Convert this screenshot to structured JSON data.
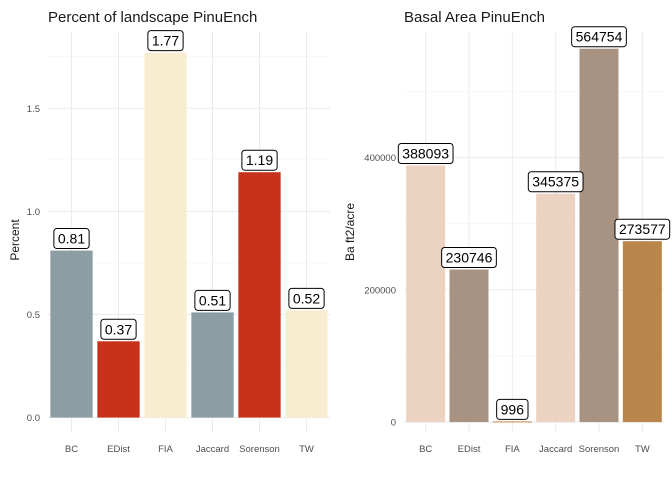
{
  "chart_data": [
    {
      "type": "bar",
      "title": "Percent of landscape  PinuEnch",
      "xlabel": "",
      "ylabel": "Percent",
      "categories": [
        "BC",
        "EDist",
        "FIA",
        "Jaccard",
        "Sorenson",
        "TW"
      ],
      "values": [
        0.81,
        0.37,
        1.77,
        0.51,
        1.19,
        0.52
      ],
      "value_labels": [
        "0.81",
        "0.37",
        "1.77",
        "0.51",
        "1.19",
        "0.52"
      ],
      "bar_colors": [
        "#8c9ea3",
        "#c8321a",
        "#f7edd0",
        "#8c9ea3",
        "#c8321a",
        "#f7edd0"
      ],
      "yticks": [
        0,
        0.5,
        1.0,
        1.5
      ],
      "ytick_labels": [
        "0.0",
        "0.5",
        "1.0",
        "1.5"
      ],
      "ylim": [
        -0.07,
        1.87
      ],
      "grid": true,
      "legend": "none"
    },
    {
      "type": "bar",
      "title": "Basal Area  PinuEnch",
      "xlabel": "",
      "ylabel": "Ba ft2/acre",
      "categories": [
        "BC",
        "EDist",
        "FIA",
        "Jaccard",
        "Sorenson",
        "TW"
      ],
      "values": [
        388093,
        230746,
        996,
        345375,
        564754,
        273577
      ],
      "value_labels": [
        "388093",
        "230746",
        "996",
        "345375",
        "564754",
        "273577"
      ],
      "bar_colors": [
        "#ecd2c0",
        "#a89282",
        "#c9884a",
        "#ecd2c0",
        "#a89282",
        "#b8864a"
      ],
      "yticks": [
        0,
        200000,
        400000
      ],
      "ytick_labels": [
        "0",
        "200000",
        "400000"
      ],
      "ylim": [
        -15000,
        590000
      ],
      "grid": true,
      "legend": "none"
    }
  ]
}
